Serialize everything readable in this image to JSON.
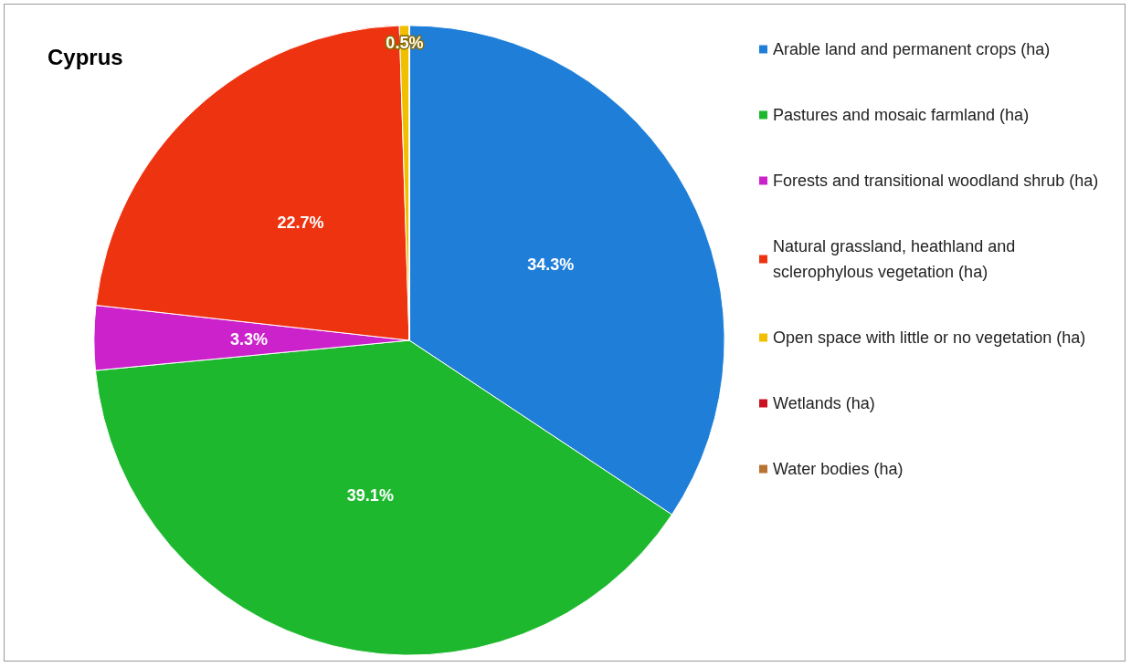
{
  "chart_data": {
    "type": "pie",
    "title": "Cyprus",
    "categories": [
      "Arable land and permanent crops (ha)",
      "Pastures and mosaic farmland (ha)",
      "Forests and transitional woodland shrub (ha)",
      "Natural grassland, heathland and sclerophylous vegetation (ha)",
      "Open space with little or no vegetation (ha)",
      "Wetlands (ha)",
      "Water bodies (ha)"
    ],
    "values": [
      34.3,
      39.1,
      3.3,
      22.7,
      0.5,
      0,
      0
    ],
    "value_labels": [
      "34.3%",
      "39.1%",
      "3.3%",
      "22.7%",
      "0.5%",
      null,
      null
    ],
    "colors": [
      "#1f7fd8",
      "#1db82e",
      "#cc22cc",
      "#ee3311",
      "#f0c000",
      "#cc1122",
      "#b87333"
    ],
    "legend": "right"
  }
}
